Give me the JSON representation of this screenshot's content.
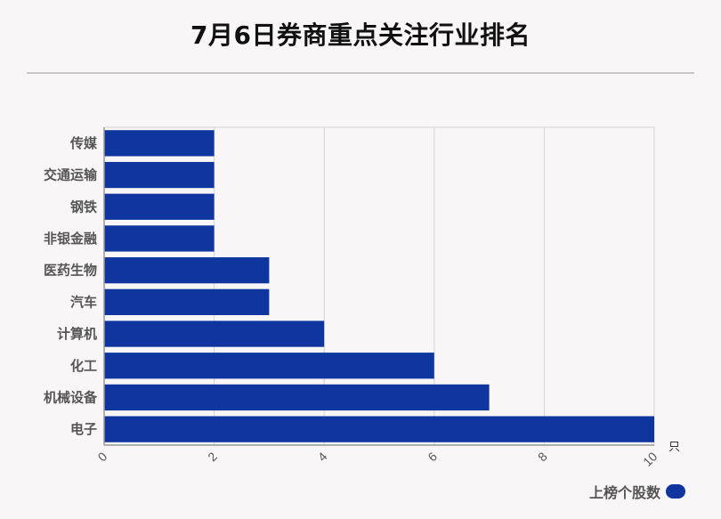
{
  "title": "7月6日券商重点关注行业排名",
  "colors": {
    "bar": "#0f369e",
    "grid": "#d4d2d4",
    "axis": "#999999",
    "label": "#555555"
  },
  "legend": {
    "label": "上榜个股数"
  },
  "chart_data": {
    "type": "bar",
    "orientation": "horizontal",
    "categories": [
      "传媒",
      "交通运输",
      "钢铁",
      "非银金融",
      "医药生物",
      "汽车",
      "计算机",
      "化工",
      "机械设备",
      "电子"
    ],
    "series": [
      {
        "name": "上榜个股数",
        "values": [
          2,
          2,
          2,
          2,
          3,
          3,
          4,
          6,
          7,
          10
        ]
      }
    ],
    "xlim": [
      0,
      10
    ],
    "xticks": [
      0,
      2,
      4,
      6,
      8,
      10
    ],
    "x_unit": "只",
    "grid": true,
    "legend_position": "bottom-right"
  }
}
